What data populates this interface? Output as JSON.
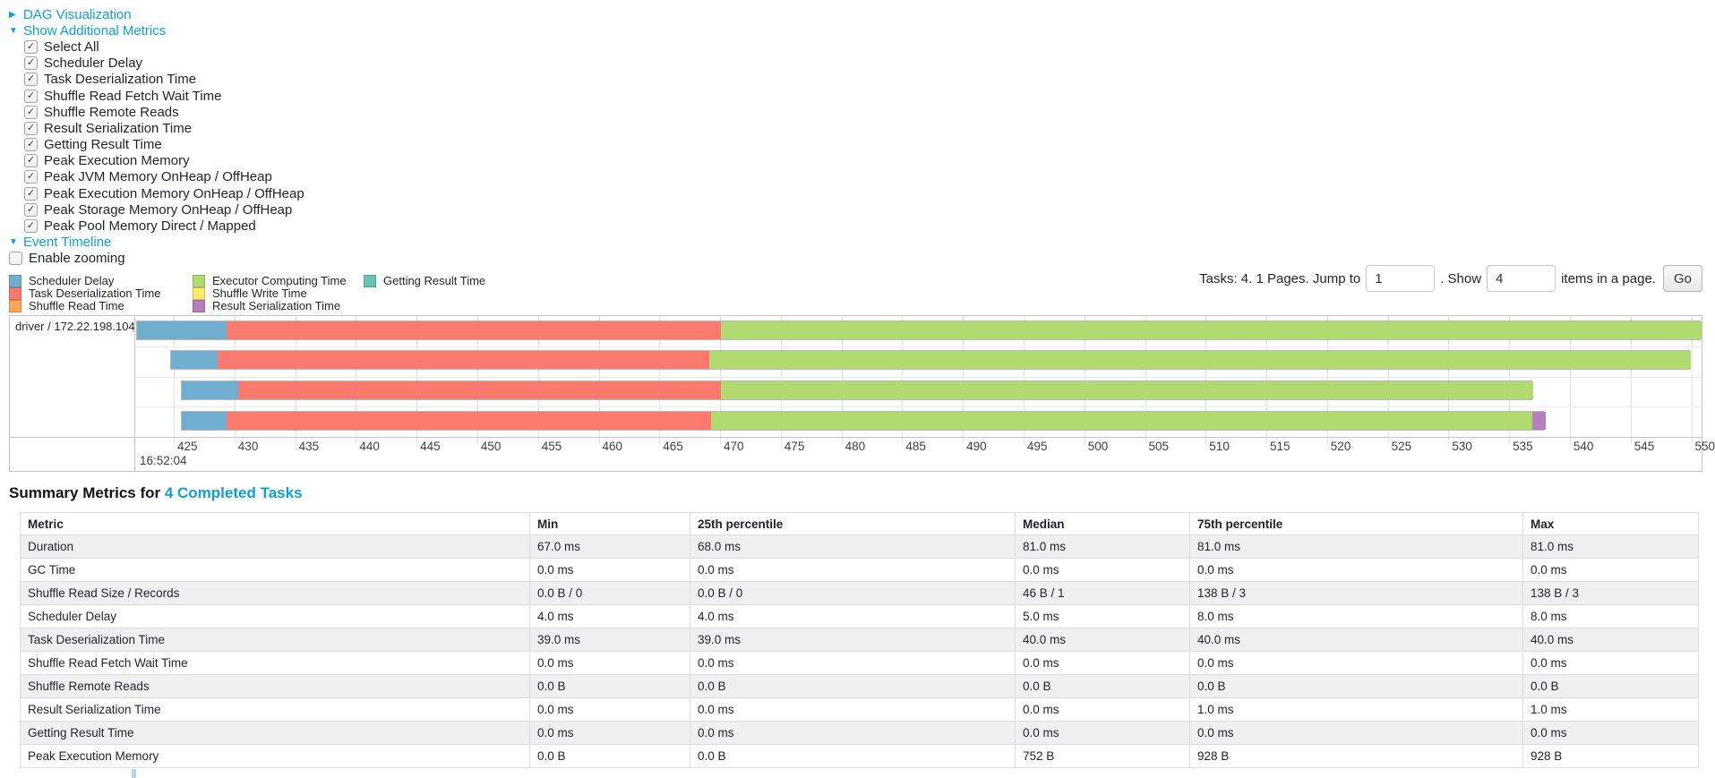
{
  "colors": {
    "link": "#0d9fdb",
    "scheduler_delay": "#6FAECE",
    "task_deserialization": "#FB7A70",
    "shuffle_read": "#FCA858",
    "executor_computing": "#B1DB70",
    "shuffle_write": "#FAEA6E",
    "result_serialization": "#B87FBE",
    "getting_result": "#67C5B2"
  },
  "sections": {
    "dag": {
      "label": "DAG Visualization",
      "state": "collapsed"
    },
    "metrics": {
      "label": "Show Additional Metrics",
      "state": "expanded"
    },
    "timeline": {
      "label": "Event Timeline",
      "state": "expanded"
    }
  },
  "metrics": {
    "items": [
      {
        "label": "Select All",
        "checked": true
      },
      {
        "label": "Scheduler Delay",
        "checked": true
      },
      {
        "label": "Task Deserialization Time",
        "checked": true
      },
      {
        "label": "Shuffle Read Fetch Wait Time",
        "checked": true
      },
      {
        "label": "Shuffle Remote Reads",
        "checked": true
      },
      {
        "label": "Result Serialization Time",
        "checked": true
      },
      {
        "label": "Getting Result Time",
        "checked": true
      },
      {
        "label": "Peak Execution Memory",
        "checked": true
      },
      {
        "label": "Peak JVM Memory OnHeap / OffHeap",
        "checked": true
      },
      {
        "label": "Peak Execution Memory OnHeap / OffHeap",
        "checked": true
      },
      {
        "label": "Peak Storage Memory OnHeap / OffHeap",
        "checked": true
      },
      {
        "label": "Peak Pool Memory Direct / Mapped",
        "checked": true
      }
    ]
  },
  "timeline": {
    "enable_zooming_label": "Enable zooming",
    "enable_zooming_checked": false,
    "legend_columns": [
      [
        {
          "label": "Scheduler Delay",
          "color": "scheduler_delay"
        },
        {
          "label": "Task Deserialization Time",
          "color": "task_deserialization"
        },
        {
          "label": "Shuffle Read Time",
          "color": "shuffle_read"
        }
      ],
      [
        {
          "label": "Executor Computing Time",
          "color": "executor_computing"
        },
        {
          "label": "Shuffle Write Time",
          "color": "shuffle_write"
        },
        {
          "label": "Result Serialization Time",
          "color": "result_serialization"
        }
      ],
      [
        {
          "label": "Getting Result Time",
          "color": "getting_result"
        }
      ]
    ],
    "group_label": "driver / 172.22.198.104",
    "chart_data": {
      "type": "timeline",
      "title": "Event Timeline",
      "x_unit": "milliseconds within second starting 16:52:04",
      "window_min": 421.9,
      "window_max": 550.85,
      "tick_start": 425,
      "tick_end": 550,
      "tick_step": 5,
      "major_label": "16:52:04",
      "tasks": [
        {
          "start": 421.9,
          "segments": [
            {
              "name": "scheduler_delay",
              "end": 429.3
            },
            {
              "name": "task_deserialization",
              "end": 470.0
            },
            {
              "name": "executor_computing",
              "end": 550.8
            }
          ]
        },
        {
          "start": 424.7,
          "segments": [
            {
              "name": "scheduler_delay",
              "end": 428.5
            },
            {
              "name": "task_deserialization",
              "end": 469.0
            },
            {
              "name": "executor_computing",
              "end": 549.9
            }
          ]
        },
        {
          "start": 425.6,
          "segments": [
            {
              "name": "scheduler_delay",
              "end": 430.2
            },
            {
              "name": "task_deserialization",
              "end": 470.0
            },
            {
              "name": "executor_computing",
              "end": 536.9
            }
          ]
        },
        {
          "start": 425.6,
          "segments": [
            {
              "name": "scheduler_delay",
              "end": 429.3
            },
            {
              "name": "task_deserialization",
              "end": 469.2
            },
            {
              "name": "executor_computing",
              "end": 536.8
            },
            {
              "name": "result_serialization",
              "end": 537.9
            }
          ]
        }
      ]
    }
  },
  "pagination": {
    "tasks_label": "Tasks: 4. 1 Pages. Jump to",
    "jump_value": "1",
    "show_label": ". Show",
    "show_value": "4",
    "items_label": "items in a page.",
    "go_label": "Go"
  },
  "summary": {
    "title_prefix": "Summary Metrics for ",
    "title_link": "4 Completed Tasks",
    "table": {
      "headers": [
        "Metric",
        "Min",
        "25th percentile",
        "Median",
        "75th percentile",
        "Max"
      ],
      "rows": [
        [
          "Duration",
          "67.0 ms",
          "68.0 ms",
          "81.0 ms",
          "81.0 ms",
          "81.0 ms"
        ],
        [
          "GC Time",
          "0.0 ms",
          "0.0 ms",
          "0.0 ms",
          "0.0 ms",
          "0.0 ms"
        ],
        [
          "Shuffle Read Size / Records",
          "0.0 B / 0",
          "0.0 B / 0",
          "46 B / 1",
          "138 B / 3",
          "138 B / 3"
        ],
        [
          "Scheduler Delay",
          "4.0 ms",
          "4.0 ms",
          "5.0 ms",
          "8.0 ms",
          "8.0 ms"
        ],
        [
          "Task Deserialization Time",
          "39.0 ms",
          "39.0 ms",
          "40.0 ms",
          "40.0 ms",
          "40.0 ms"
        ],
        [
          "Shuffle Read Fetch Wait Time",
          "0.0 ms",
          "0.0 ms",
          "0.0 ms",
          "0.0 ms",
          "0.0 ms"
        ],
        [
          "Shuffle Remote Reads",
          "0.0 B",
          "0.0 B",
          "0.0 B",
          "0.0 B",
          "0.0 B"
        ],
        [
          "Result Serialization Time",
          "0.0 ms",
          "0.0 ms",
          "0.0 ms",
          "1.0 ms",
          "1.0 ms"
        ],
        [
          "Getting Result Time",
          "0.0 ms",
          "0.0 ms",
          "0.0 ms",
          "0.0 ms",
          "0.0 ms"
        ],
        [
          "Peak Execution Memory",
          "0.0 B",
          "0.0 B",
          "752 B",
          "928 B",
          "928 B"
        ]
      ]
    }
  }
}
